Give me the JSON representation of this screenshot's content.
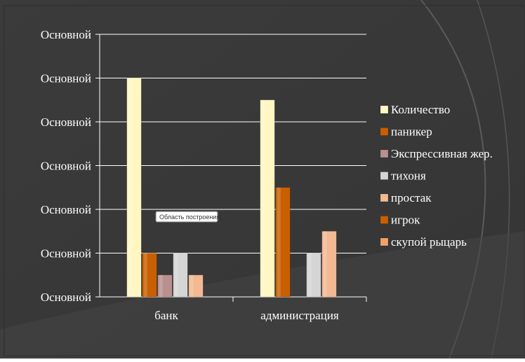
{
  "colors": {
    "background": "#3a3a3a",
    "plot_text": "#ffffff",
    "gridline": "#ffffff"
  },
  "tooltip": {
    "text": "Область построения"
  },
  "chart_data": {
    "type": "bar",
    "categories": [
      "банк",
      "администрация"
    ],
    "ytick_labels": [
      "Основной",
      "Основной",
      "Основной",
      "Основной",
      "Основной",
      "Основной",
      "Основной"
    ],
    "ylim": [
      0,
      6
    ],
    "grid": true,
    "legend": "right",
    "series": [
      {
        "name": "Количество",
        "color": "#fff6c2",
        "values": [
          5,
          4.5
        ]
      },
      {
        "name": "паникер",
        "color": "#c95f00",
        "values": [
          1,
          2.5
        ]
      },
      {
        "name": "Экспрессивная жер.",
        "color": "#b98f8f",
        "values": [
          0.5,
          0
        ]
      },
      {
        "name": "тихоня",
        "color": "#d5d5d5",
        "values": [
          1,
          1
        ]
      },
      {
        "name": "простак",
        "color": "#f2b992",
        "values": [
          0.5,
          1.5
        ]
      },
      {
        "name": "игрок",
        "color": "#c95f00",
        "values": [
          0,
          0
        ]
      },
      {
        "name": "скупой рыцарь",
        "color": "#eea36c",
        "values": [
          0,
          0
        ]
      }
    ]
  }
}
